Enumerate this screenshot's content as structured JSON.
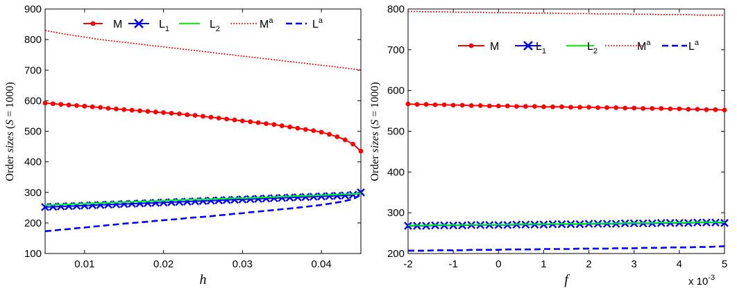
{
  "chart_data": [
    {
      "type": "line",
      "xlabel": "h",
      "ylabel": "Order sizes (S = 1000)",
      "ylabel_parts": [
        "Order",
        "sizes",
        "(",
        "S",
        "= 1000)"
      ],
      "xlim": [
        0.005,
        0.045
      ],
      "ylim": [
        100,
        900
      ],
      "xticks": [
        0.01,
        0.02,
        0.03,
        0.04
      ],
      "xtick_labels": [
        "0.01",
        "0.02",
        "0.03",
        "0.04"
      ],
      "yticks": [
        100,
        200,
        300,
        400,
        500,
        600,
        700,
        800,
        900
      ],
      "ytick_labels": [
        "100",
        "200",
        "300",
        "400",
        "500",
        "600",
        "700",
        "800",
        "900"
      ],
      "exponent_label": "",
      "legend_position": "top",
      "x": [
        0.005,
        0.006,
        0.007,
        0.008,
        0.009,
        0.01,
        0.011,
        0.012,
        0.013,
        0.014,
        0.015,
        0.016,
        0.017,
        0.018,
        0.019,
        0.02,
        0.021,
        0.022,
        0.023,
        0.024,
        0.025,
        0.026,
        0.027,
        0.028,
        0.029,
        0.03,
        0.031,
        0.032,
        0.033,
        0.034,
        0.035,
        0.036,
        0.037,
        0.038,
        0.039,
        0.04,
        0.041,
        0.042,
        0.043,
        0.044,
        0.045
      ],
      "series": [
        {
          "name": "M",
          "sub": "",
          "sup": "",
          "color": "#ff0000",
          "style": "solid",
          "marker": "dot",
          "values": [
            592,
            590,
            588,
            586,
            584,
            582,
            580,
            578,
            575,
            573,
            571,
            569,
            567,
            565,
            563,
            561,
            559,
            557,
            554,
            552,
            549,
            546,
            543,
            540,
            537,
            534,
            531,
            528,
            525,
            522,
            518,
            514,
            510,
            506,
            502,
            497,
            490,
            482,
            472,
            458,
            435
          ]
        },
        {
          "name": "L",
          "sub": "1",
          "sup": "",
          "color": "#0000ff",
          "style": "solid",
          "marker": "x",
          "values": [
            252,
            253,
            254,
            255,
            256,
            257,
            258,
            259,
            260,
            261,
            262,
            263,
            264,
            265,
            266,
            267,
            268,
            269,
            270,
            271,
            272,
            273,
            274,
            275,
            276,
            277,
            278,
            279,
            280,
            281,
            282,
            283,
            284,
            285,
            286,
            287,
            288,
            289,
            290,
            292,
            300
          ]
        },
        {
          "name": "L",
          "sub": "2",
          "sup": "",
          "color": "#00ff00",
          "style": "solid",
          "marker": "none",
          "values": [
            258,
            259,
            260,
            261,
            262,
            263,
            264,
            265,
            266,
            267,
            268,
            269,
            270,
            271,
            272,
            273,
            274,
            275,
            276,
            277,
            277,
            278,
            279,
            280,
            281,
            281,
            282,
            283,
            284,
            285,
            286,
            287,
            288,
            289,
            290,
            291,
            292,
            293,
            294,
            295,
            297
          ]
        },
        {
          "name": "M",
          "sub": "",
          "sup": "a",
          "color": "#ff0000",
          "style": "dotted",
          "marker": "none",
          "values": [
            830,
            825,
            820,
            816,
            812,
            808,
            804,
            800,
            797,
            794,
            791,
            788,
            785,
            782,
            779,
            776,
            773,
            770,
            767,
            764,
            761,
            758,
            755,
            752,
            749,
            746,
            743,
            740,
            737,
            734,
            731,
            728,
            725,
            722,
            719,
            716,
            713,
            710,
            707,
            704,
            700
          ]
        },
        {
          "name": "L",
          "sub": "",
          "sup": "a",
          "color": "#0000ff",
          "style": "dashed",
          "marker": "none",
          "values": [
            173,
            175,
            178,
            180,
            183,
            185,
            188,
            190,
            193,
            195,
            198,
            200,
            202,
            204,
            207,
            209,
            211,
            213,
            216,
            218,
            220,
            222,
            225,
            227,
            230,
            232,
            235,
            237,
            240,
            242,
            245,
            247,
            250,
            253,
            256,
            259,
            263,
            267,
            272,
            278,
            292
          ]
        }
      ]
    },
    {
      "type": "line",
      "xlabel": "f",
      "ylabel": "Order sizes (S = 1000)",
      "ylabel_parts": [
        "Order",
        "sizes",
        "(",
        "S",
        "= 1000)"
      ],
      "xlim": [
        -2,
        5
      ],
      "ylim": [
        200,
        800
      ],
      "xticks": [
        -2,
        -1,
        0,
        1,
        2,
        3,
        4,
        5
      ],
      "xtick_labels": [
        "-2",
        "-1",
        "0",
        "1",
        "2",
        "3",
        "4",
        "5"
      ],
      "yticks": [
        200,
        300,
        400,
        500,
        600,
        700,
        800
      ],
      "ytick_labels": [
        "200",
        "300",
        "400",
        "500",
        "600",
        "700",
        "800"
      ],
      "exponent_label": "x 10",
      "exponent_power": "-3",
      "legend_position": "top-right",
      "x": [
        -2.0,
        -1.8,
        -1.6,
        -1.4,
        -1.2,
        -1.0,
        -0.8,
        -0.6,
        -0.4,
        -0.2,
        0.0,
        0.2,
        0.4,
        0.6,
        0.8,
        1.0,
        1.2,
        1.4,
        1.6,
        1.8,
        2.0,
        2.2,
        2.4,
        2.6,
        2.8,
        3.0,
        3.2,
        3.4,
        3.6,
        3.8,
        4.0,
        4.2,
        4.4,
        4.6,
        4.8,
        5.0
      ],
      "series": [
        {
          "name": "M",
          "sub": "",
          "sup": "",
          "color": "#ff0000",
          "style": "solid",
          "marker": "dot",
          "values": [
            567,
            566,
            566,
            565,
            565,
            564,
            564,
            563,
            563,
            562,
            562,
            562,
            561,
            561,
            561,
            560,
            560,
            560,
            559,
            559,
            559,
            558,
            558,
            558,
            557,
            557,
            556,
            556,
            556,
            555,
            555,
            554,
            554,
            553,
            553,
            552
          ]
        },
        {
          "name": "L",
          "sub": "1",
          "sup": "",
          "color": "#0000ff",
          "style": "solid",
          "marker": "x",
          "values": [
            268,
            268,
            268,
            269,
            269,
            269,
            269,
            270,
            270,
            270,
            270,
            270,
            271,
            271,
            271,
            271,
            272,
            272,
            272,
            272,
            273,
            273,
            273,
            273,
            274,
            274,
            274,
            274,
            275,
            275,
            275,
            275,
            276,
            276,
            276,
            275
          ]
        },
        {
          "name": "L",
          "sub": "2",
          "sup": "",
          "color": "#00ff00",
          "style": "solid",
          "marker": "none",
          "values": [
            269,
            269,
            269,
            270,
            270,
            270,
            270,
            271,
            271,
            271,
            271,
            271,
            272,
            272,
            272,
            272,
            273,
            273,
            273,
            273,
            274,
            274,
            274,
            274,
            275,
            275,
            275,
            275,
            276,
            276,
            276,
            276,
            277,
            277,
            277,
            277
          ]
        },
        {
          "name": "M",
          "sub": "",
          "sup": "a",
          "color": "#ff0000",
          "style": "dotted",
          "marker": "none",
          "values": [
            794,
            794,
            793,
            793,
            793,
            792,
            792,
            792,
            792,
            791,
            791,
            791,
            791,
            790,
            790,
            790,
            790,
            789,
            789,
            789,
            789,
            788,
            788,
            788,
            788,
            787,
            787,
            787,
            786,
            786,
            786,
            786,
            785,
            785,
            785,
            785
          ]
        },
        {
          "name": "L",
          "sub": "",
          "sup": "a",
          "color": "#0000ff",
          "style": "dashed",
          "marker": "none",
          "values": [
            207,
            207,
            207,
            208,
            208,
            208,
            208,
            209,
            209,
            209,
            209,
            210,
            210,
            210,
            210,
            211,
            211,
            211,
            211,
            212,
            212,
            212,
            212,
            213,
            213,
            213,
            214,
            214,
            214,
            215,
            215,
            215,
            216,
            216,
            217,
            218
          ]
        }
      ]
    }
  ]
}
